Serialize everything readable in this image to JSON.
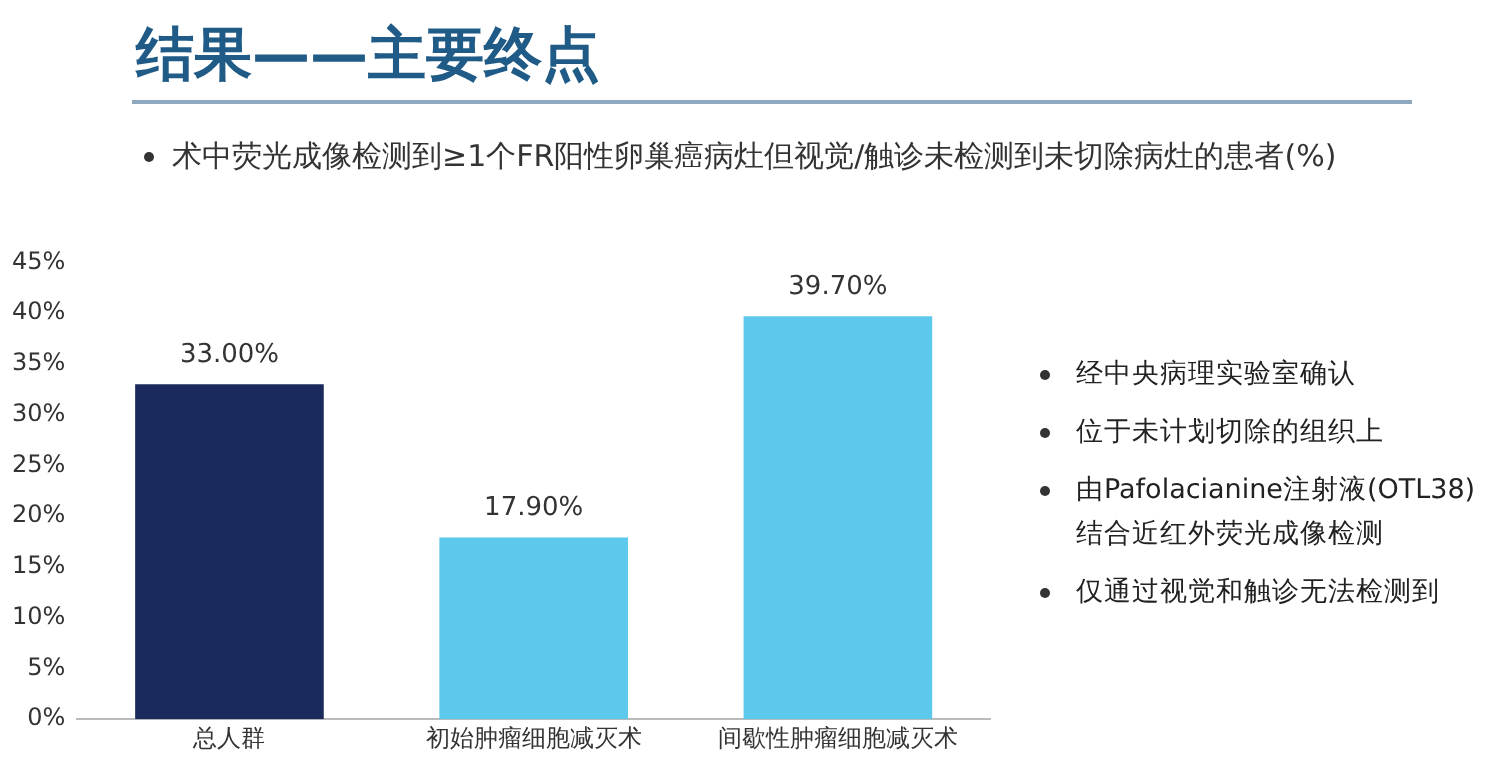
{
  "chart_data": {
    "type": "bar",
    "title": "结果——主要终点",
    "subtitle": "术中荧光成像检测到≥1个FR阳性卵巢癌病灶但视觉/触诊未检测到未切除病灶的患者(%)",
    "categories": [
      "总人群",
      "初始肿瘤细胞减灭术",
      "间歇性肿瘤细胞减灭术"
    ],
    "values": [
      33.0,
      17.9,
      39.7
    ],
    "colors": [
      "#1b2a5c",
      "#5cc8ec",
      "#5cc8ec"
    ],
    "value_labels": [
      "33.00%",
      "17.90%",
      "39.70%"
    ],
    "ylim": [
      0,
      45
    ],
    "yticks": [
      {
        "value": 0,
        "label": "0%"
      },
      {
        "value": 5,
        "label": "5%"
      },
      {
        "value": 10,
        "label": "10%"
      },
      {
        "value": 15,
        "label": "15%"
      },
      {
        "value": 20,
        "label": "20%"
      },
      {
        "value": 25,
        "label": "25%"
      },
      {
        "value": 30,
        "label": "30%"
      },
      {
        "value": 35,
        "label": "35%"
      },
      {
        "value": 40,
        "label": "40%"
      },
      {
        "value": 45,
        "label": "45%"
      }
    ],
    "grid": false,
    "legend": false,
    "annotations": [
      "经中央病理实验室确认",
      "位于未计划切除的组织上",
      "由Pafolacianine注射液(OTL38)结合近红外荧光成像检测",
      "仅通过视觉和触诊无法检测到"
    ]
  }
}
